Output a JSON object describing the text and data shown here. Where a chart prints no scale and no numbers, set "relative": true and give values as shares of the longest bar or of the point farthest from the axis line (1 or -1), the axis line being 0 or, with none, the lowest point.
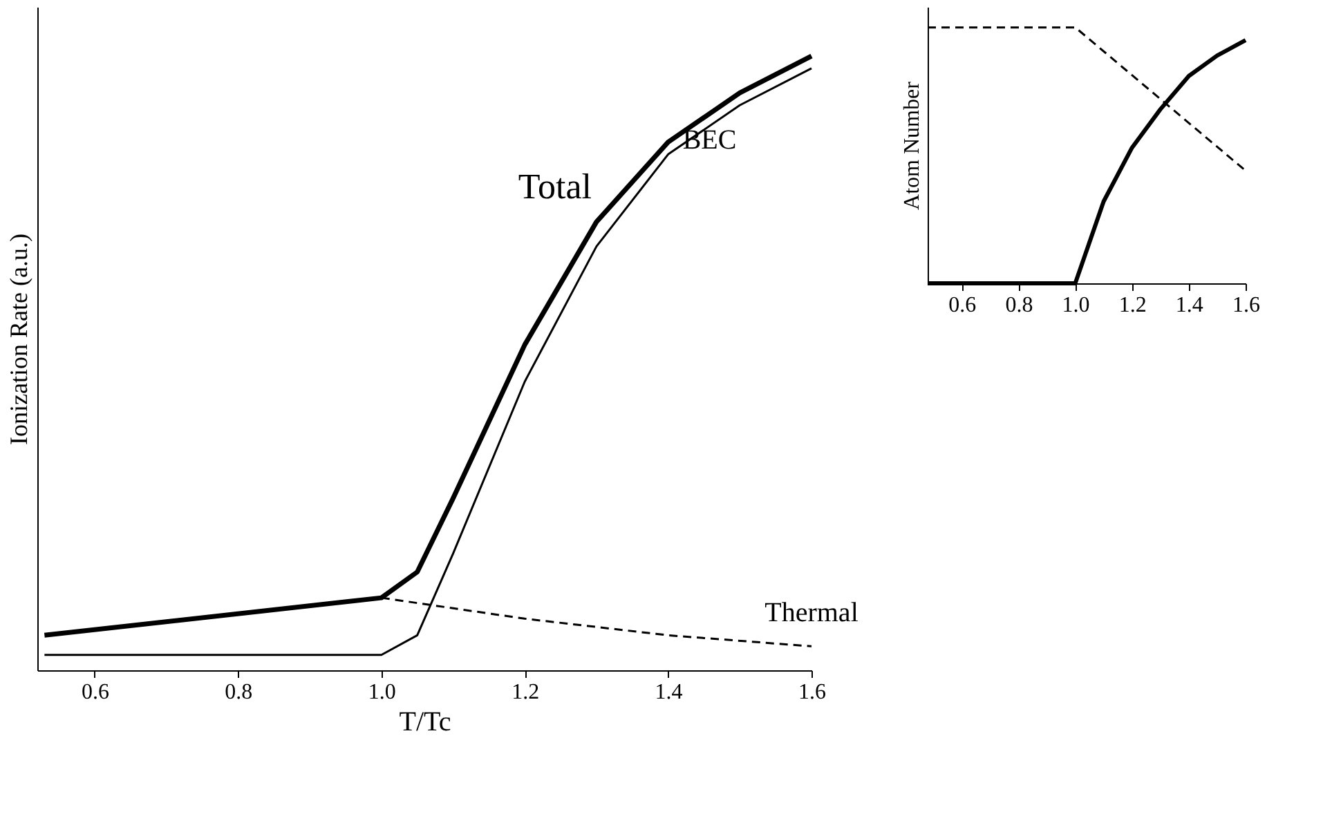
{
  "chart_data": [
    {
      "type": "line",
      "xlabel": "T/Tc",
      "ylabel": "Ionization Rate (a.u.)",
      "relative": true,
      "xlim": [
        0.52,
        1.6
      ],
      "xticks": [
        0.6,
        0.8,
        {
          "value": 1.0,
          "label": "1.0"
        },
        1.2,
        1.4,
        1.6
      ],
      "marker": "none",
      "series": [
        {
          "name": "Total",
          "color": "#000000",
          "line_style": "solid",
          "x": [
            0.53,
            1.0,
            1.05,
            1.1,
            1.2,
            1.3,
            1.4,
            1.5,
            1.6
          ],
          "values": [
            0.057,
            0.118,
            0.16,
            0.28,
            0.53,
            0.73,
            0.86,
            0.94,
            1.0
          ]
        },
        {
          "name": "BEC",
          "color": "#000000",
          "line_style": "solid",
          "x": [
            0.53,
            1.0,
            1.05,
            1.1,
            1.2,
            1.3,
            1.4,
            1.5,
            1.6
          ],
          "values": [
            0.025,
            0.025,
            0.057,
            0.19,
            0.47,
            0.69,
            0.84,
            0.92,
            0.98
          ]
        },
        {
          "name": "Thermal",
          "color": "#000000",
          "line_style": "dashed",
          "x": [
            1.0,
            1.2,
            1.4,
            1.6
          ],
          "values": [
            0.118,
            0.084,
            0.057,
            0.039
          ]
        }
      ]
    },
    {
      "type": "line",
      "ylabel": "Atom Number",
      "relative": true,
      "xlim": [
        0.48,
        1.6
      ],
      "xticks": [
        0.6,
        0.8,
        {
          "value": 1.0,
          "label": "1.0"
        },
        1.2,
        1.4,
        1.6
      ],
      "marker": "none",
      "series": [
        {
          "color": "#000000",
          "line_style": "dashed",
          "x": [
            0.48,
            1.0,
            1.6
          ],
          "values": [
            1.0,
            1.0,
            0.44
          ]
        },
        {
          "color": "#000000",
          "line_style": "solid",
          "x": [
            0.48,
            1.0,
            1.1,
            1.2,
            1.3,
            1.4,
            1.5,
            1.6
          ],
          "values": [
            0,
            0,
            0.32,
            0.53,
            0.68,
            0.81,
            0.89,
            0.95
          ]
        }
      ]
    }
  ]
}
